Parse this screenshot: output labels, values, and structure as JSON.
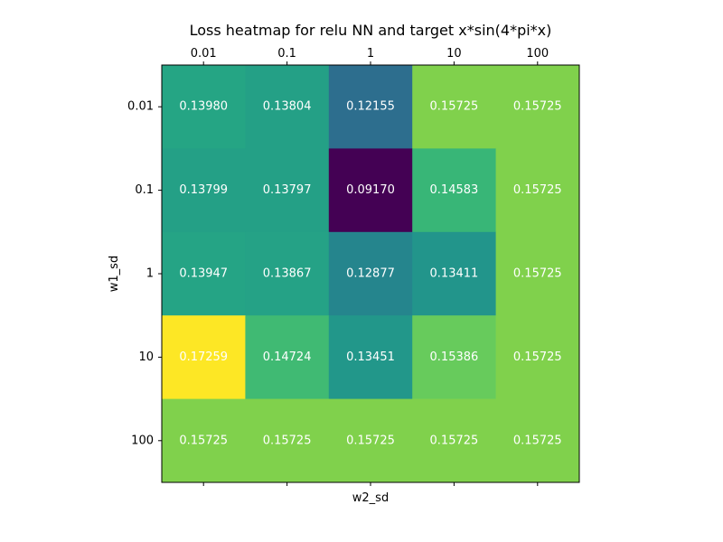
{
  "chart_data": {
    "type": "heatmap",
    "title": "Loss heatmap for relu NN and target x*sin(4*pi*x)",
    "xlabel": "w2_sd",
    "ylabel": "w1_sd",
    "x_categories": [
      "0.01",
      "0.1",
      "1",
      "10",
      "100"
    ],
    "y_categories": [
      "0.01",
      "0.1",
      "1",
      "10",
      "100"
    ],
    "values": [
      [
        0.1398,
        0.13804,
        0.12155,
        0.15725,
        0.15725
      ],
      [
        0.13799,
        0.13797,
        0.0917,
        0.14583,
        0.15725
      ],
      [
        0.13947,
        0.13867,
        0.12877,
        0.13411,
        0.15725
      ],
      [
        0.17259,
        0.14724,
        0.13451,
        0.15386,
        0.15725
      ],
      [
        0.15725,
        0.15725,
        0.15725,
        0.15725,
        0.15725
      ]
    ],
    "value_labels": [
      [
        "0.13980",
        "0.13804",
        "0.12155",
        "0.15725",
        "0.15725"
      ],
      [
        "0.13799",
        "0.13797",
        "0.09170",
        "0.14583",
        "0.15725"
      ],
      [
        "0.13947",
        "0.13867",
        "0.12877",
        "0.13411",
        "0.15725"
      ],
      [
        "0.17259",
        "0.14724",
        "0.13451",
        "0.15386",
        "0.15725"
      ],
      [
        "0.15725",
        "0.15725",
        "0.15725",
        "0.15725",
        "0.15725"
      ]
    ],
    "colormap": "viridis",
    "x_ticks_position": "top",
    "grid": false
  }
}
